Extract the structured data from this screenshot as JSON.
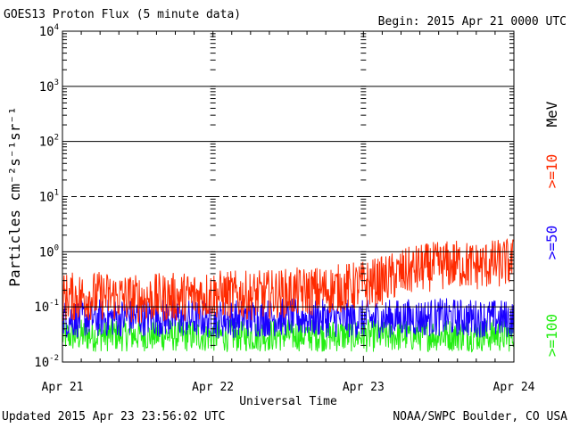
{
  "header": {
    "title": "GOES13 Proton Flux (5 minute data)",
    "begin": "Begin: 2015 Apr 21 0000 UTC"
  },
  "footer": {
    "updated": "Updated 2015 Apr 23 23:56:02 UTC",
    "credit": "NOAA/SWPC Boulder, CO USA"
  },
  "chart_data": {
    "type": "line",
    "title": "GOES13 Proton Flux (5 minute data)",
    "xlabel": "Universal Time",
    "ylabel": "Particles cm⁻²s⁻¹sr⁻¹",
    "yscale": "log",
    "ylim": [
      0.01,
      10000
    ],
    "x_ticks": [
      "Apr 21",
      "Apr 22",
      "Apr 23",
      "Apr 24"
    ],
    "y_ticks": [
      {
        "base": "10",
        "exp": "4"
      },
      {
        "base": "10",
        "exp": "3"
      },
      {
        "base": "10",
        "exp": "2"
      },
      {
        "base": "10",
        "exp": "1"
      },
      {
        "base": "10",
        "exp": "0"
      },
      {
        "base": "10",
        "exp": "-1"
      },
      {
        "base": "10",
        "exp": "-2"
      }
    ],
    "unit_label": "MeV",
    "series": [
      {
        "name": ">=10",
        "color": "#ff2a00",
        "x_hours": [
          0,
          6,
          12,
          18,
          24,
          30,
          36,
          42,
          48,
          51,
          54,
          57,
          60,
          63,
          66,
          69,
          72
        ],
        "values": [
          0.15,
          0.16,
          0.14,
          0.15,
          0.17,
          0.16,
          0.18,
          0.2,
          0.25,
          0.3,
          0.4,
          0.5,
          0.55,
          0.6,
          0.55,
          0.6,
          0.65
        ]
      },
      {
        "name": ">=50",
        "color": "#1a00ff",
        "x_hours": [
          0,
          12,
          24,
          36,
          48,
          60,
          72
        ],
        "values": [
          0.06,
          0.065,
          0.06,
          0.065,
          0.06,
          0.065,
          0.06
        ]
      },
      {
        "name": ">=100",
        "color": "#22ee11",
        "x_hours": [
          0,
          12,
          24,
          36,
          48,
          60,
          72
        ],
        "values": [
          0.03,
          0.031,
          0.03,
          0.031,
          0.03,
          0.031,
          0.03
        ]
      }
    ]
  }
}
